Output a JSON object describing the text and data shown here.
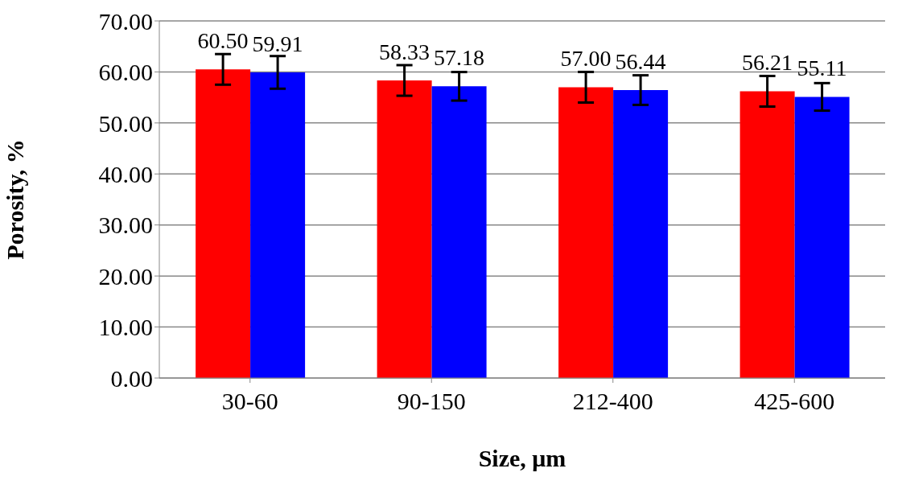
{
  "chart_data": {
    "type": "bar",
    "xlabel": "Size, μm",
    "ylabel": "Porosity, %",
    "categories": [
      "30-60",
      "90-150",
      "212-400",
      "425-600"
    ],
    "series": [
      {
        "color": "#ff0000",
        "values": [
          60.5,
          58.33,
          57.0,
          56.21
        ],
        "value_labels": [
          "60.50",
          "58.33",
          "57.00",
          "56.21"
        ],
        "errors": [
          3,
          3,
          3,
          3
        ]
      },
      {
        "color": "#0000ff",
        "values": [
          59.91,
          57.18,
          56.44,
          55.11
        ],
        "value_labels": [
          "59.91",
          "57.18",
          "56.44",
          "55.11"
        ],
        "errors": [
          3.2,
          2.8,
          2.9,
          2.7
        ]
      }
    ],
    "ylim": [
      0,
      70
    ],
    "yticks": [
      {
        "value": 0,
        "label": "0.00"
      },
      {
        "value": 10,
        "label": "10.00"
      },
      {
        "value": 20,
        "label": "20.00"
      },
      {
        "value": 30,
        "label": "30.00"
      },
      {
        "value": 40,
        "label": "40.00"
      },
      {
        "value": 50,
        "label": "50.00"
      },
      {
        "value": 60,
        "label": "60.00"
      },
      {
        "value": 70,
        "label": "70.00"
      }
    ],
    "grid": "y"
  }
}
